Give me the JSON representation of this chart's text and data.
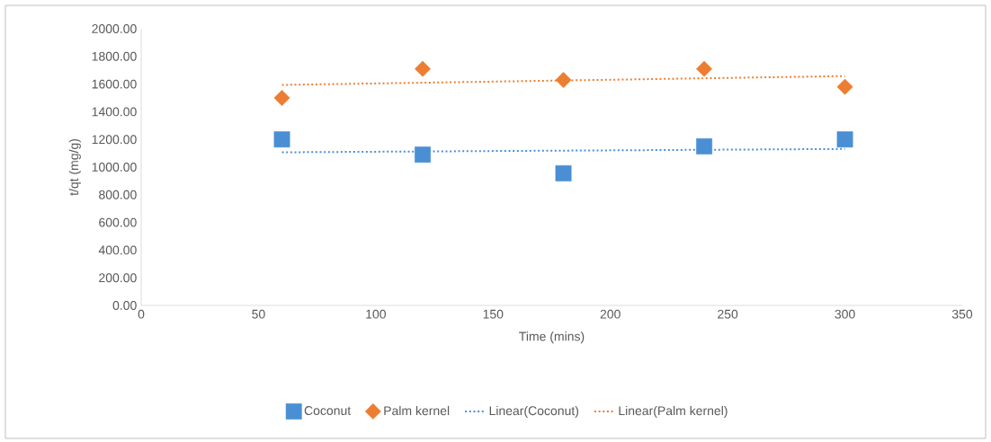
{
  "chart_data": {
    "type": "scatter",
    "xlabel": "Time (mins)",
    "ylabel": "t/qt (mg/g)",
    "x": [
      60,
      120,
      180,
      240,
      300
    ],
    "series": [
      {
        "name": "Coconut",
        "color": "#4a8fd4",
        "marker": "square",
        "values": [
          1200,
          1090,
          955,
          1150,
          1200
        ]
      },
      {
        "name": "Palm kernel",
        "color": "#ed7d31",
        "marker": "diamond",
        "values": [
          1500,
          1710,
          1630,
          1710,
          1580
        ]
      },
      {
        "name": "Linear(Coconut)",
        "type": "line",
        "color": "#4a8fd4",
        "line_style": "dotted",
        "marker": "none",
        "values": [
          1107,
          1113,
          1119,
          1125,
          1131
        ]
      },
      {
        "name": "Linear(Palm kernel)",
        "type": "line",
        "color": "#ed7d31",
        "line_style": "dotted",
        "marker": "none",
        "values": [
          1594,
          1610,
          1626,
          1642,
          1658
        ]
      }
    ],
    "xlim": [
      0,
      350
    ],
    "xticks": [
      0,
      50,
      100,
      150,
      200,
      250,
      300,
      350
    ],
    "ylim": [
      0,
      2000
    ],
    "yticks": [
      {
        "value": 0,
        "label": "0.00"
      },
      {
        "value": 200,
        "label": "200.00"
      },
      {
        "value": 400,
        "label": "400.00"
      },
      {
        "value": 600,
        "label": "600.00"
      },
      {
        "value": 800,
        "label": "800.00"
      },
      {
        "value": 1000,
        "label": "1000.00"
      },
      {
        "value": 1200,
        "label": "1200.00"
      },
      {
        "value": 1400,
        "label": "1400.00"
      },
      {
        "value": 1600,
        "label": "1600.00"
      },
      {
        "value": 1800,
        "label": "1800.00"
      },
      {
        "value": 2000,
        "label": "2000.00"
      }
    ],
    "legend": "bottom",
    "grid": false
  }
}
